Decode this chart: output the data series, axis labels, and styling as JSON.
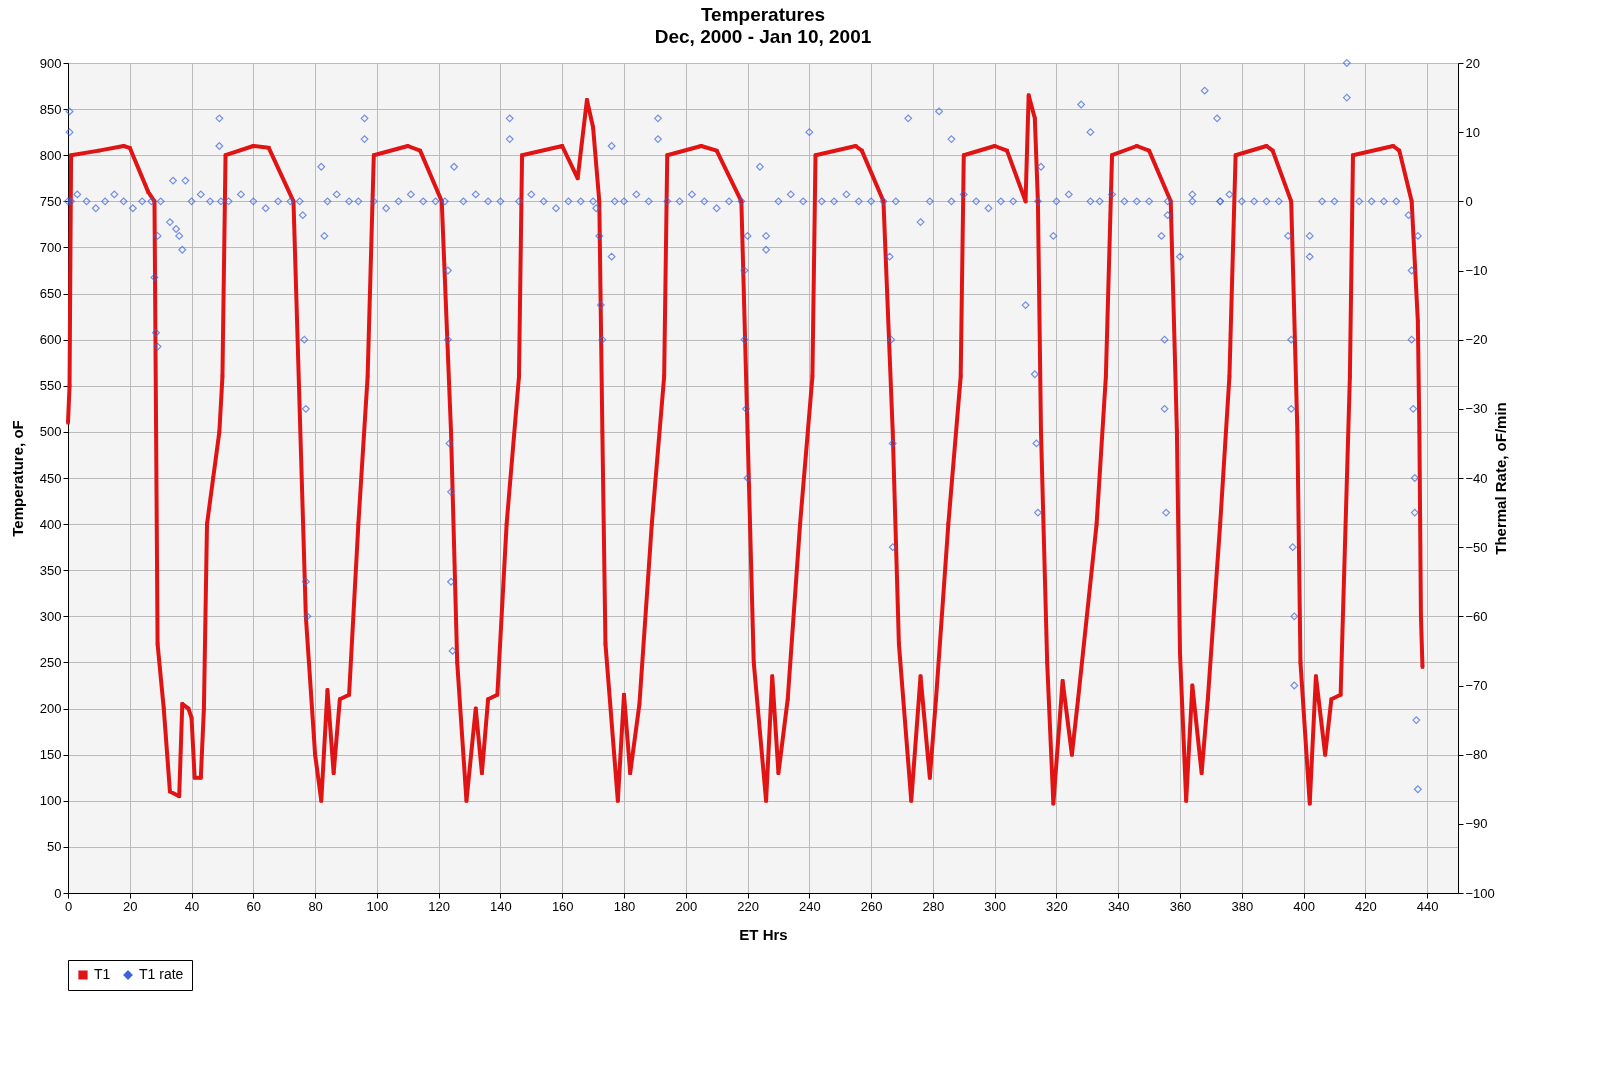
{
  "chart_data": {
    "type": "line",
    "title": "Temperatures",
    "subtitle": "Dec, 2000 - Jan 10, 2001",
    "xlabel": "ET Hrs",
    "ylabel": "Temperature, oF",
    "y2label": "Thermal Rate, oF/min",
    "xlim": [
      0,
      450
    ],
    "xticks": [
      0,
      20,
      40,
      60,
      80,
      100,
      120,
      140,
      160,
      180,
      200,
      220,
      240,
      260,
      280,
      300,
      320,
      340,
      360,
      380,
      400,
      420,
      440
    ],
    "ylim": [
      0,
      900
    ],
    "yticks": [
      0,
      50,
      100,
      150,
      200,
      250,
      300,
      350,
      400,
      450,
      500,
      550,
      600,
      650,
      700,
      750,
      800,
      850,
      900
    ],
    "y2lim": [
      -100,
      20
    ],
    "y2ticks": [
      -100,
      -90,
      -80,
      -70,
      -60,
      -50,
      -40,
      -30,
      -20,
      -10,
      0,
      10,
      20
    ],
    "grid": true,
    "legend": "bottom",
    "series": [
      {
        "name": "T1",
        "type": "line",
        "marker": "square",
        "color": "#e01414",
        "x": [
          0,
          0.5,
          1,
          10,
          18,
          20,
          26,
          28,
          29,
          31,
          33,
          36,
          37,
          39,
          40,
          41,
          43,
          44,
          45,
          47,
          49,
          50,
          51,
          60,
          65,
          73,
          77,
          78,
          80,
          82,
          84,
          86,
          88,
          91,
          94,
          97,
          99,
          110,
          114,
          121,
          124,
          126,
          129,
          132,
          134,
          136,
          139,
          142,
          146,
          147,
          160,
          165,
          168,
          170,
          172,
          173,
          174,
          178,
          180,
          182,
          185,
          189,
          193,
          194,
          205,
          210,
          218,
          220,
          222,
          226,
          228,
          230,
          233,
          237,
          241,
          242,
          255,
          257,
          264,
          267,
          269,
          273,
          276,
          279,
          281,
          285,
          289,
          290,
          300,
          304,
          310,
          311,
          313,
          314,
          315,
          317,
          319,
          322,
          325,
          327,
          333,
          336,
          338,
          346,
          350,
          357,
          359,
          360,
          362,
          364,
          367,
          369,
          373,
          376,
          378,
          388,
          390,
          396,
          398,
          399,
          402,
          404,
          407,
          409,
          412,
          415,
          416,
          429,
          431,
          435,
          437,
          437.5,
          438,
          438.5
        ],
        "values": [
          510,
          550,
          800,
          805,
          810,
          808,
          760,
          750,
          270,
          200,
          110,
          105,
          205,
          200,
          190,
          125,
          125,
          200,
          400,
          450,
          500,
          560,
          800,
          810,
          808,
          750,
          300,
          250,
          150,
          100,
          220,
          130,
          210,
          215,
          400,
          560,
          800,
          810,
          805,
          750,
          500,
          250,
          100,
          200,
          130,
          210,
          215,
          400,
          560,
          800,
          810,
          775,
          860,
          830,
          750,
          500,
          270,
          100,
          215,
          130,
          205,
          400,
          560,
          800,
          810,
          805,
          750,
          500,
          250,
          100,
          235,
          130,
          210,
          400,
          560,
          800,
          810,
          805,
          750,
          500,
          270,
          100,
          235,
          125,
          210,
          400,
          560,
          800,
          810,
          805,
          750,
          865,
          840,
          750,
          500,
          250,
          97,
          230,
          150,
          210,
          400,
          560,
          800,
          810,
          805,
          750,
          500,
          260,
          100,
          225,
          130,
          210,
          400,
          560,
          800,
          810,
          805,
          750,
          500,
          250,
          97,
          235,
          150,
          210,
          215,
          560,
          800,
          810,
          805,
          750,
          620,
          500,
          300,
          245
        ]
      },
      {
        "name": "T1 rate",
        "type": "scatter",
        "axis": "y2",
        "marker": "diamond",
        "color": "#3c64dc",
        "x": [
          0,
          0.5,
          0.5,
          1,
          3,
          6,
          9,
          12,
          15,
          18,
          21,
          24,
          27,
          28,
          28.5,
          29,
          29,
          30,
          33,
          34,
          35,
          36,
          37,
          38,
          40,
          43,
          46,
          49,
          49,
          49.5,
          52,
          56,
          60,
          64,
          68,
          72,
          75,
          76,
          76.5,
          77,
          77,
          77.5,
          82,
          83,
          84,
          87,
          91,
          94,
          96,
          96,
          99,
          103,
          107,
          111,
          115,
          119,
          122,
          123,
          123,
          123.5,
          124,
          124,
          124.5,
          125,
          128,
          132,
          136,
          140,
          143,
          143,
          146,
          150,
          154,
          158,
          162,
          166,
          170,
          171,
          172,
          172.5,
          173,
          176,
          176,
          177,
          180,
          184,
          188,
          191,
          191,
          194,
          198,
          202,
          206,
          210,
          214,
          218,
          219,
          219,
          219.5,
          220,
          220,
          224,
          226,
          226,
          230,
          234,
          238,
          240,
          244,
          248,
          252,
          256,
          260,
          264,
          266,
          266.5,
          267,
          267,
          268,
          272,
          276,
          279,
          282,
          286,
          286,
          290,
          294,
          298,
          302,
          306,
          310,
          313,
          313.5,
          314,
          314,
          315,
          319,
          320,
          324,
          328,
          331,
          331,
          334,
          338,
          342,
          346,
          350,
          354,
          355,
          355,
          355.5,
          356,
          356,
          360,
          364,
          364,
          368,
          372,
          373,
          373,
          376,
          380,
          384,
          388,
          392,
          395,
          396,
          396,
          396.5,
          397,
          397,
          402,
          402,
          406,
          410,
          414,
          414,
          418,
          422,
          426,
          430,
          434,
          435,
          435,
          435.5,
          436,
          436,
          436.5,
          437,
          437
        ],
        "values": [
          0,
          13,
          10,
          0,
          1,
          0,
          -1,
          0,
          1,
          0,
          -1,
          0,
          0,
          -11,
          -19,
          -21,
          -5,
          0,
          -3,
          3,
          -4,
          -5,
          -7,
          3,
          0,
          1,
          0,
          12,
          8,
          0,
          0,
          1,
          0,
          -1,
          0,
          0,
          0,
          -2,
          -20,
          -30,
          -55,
          -60,
          5,
          -5,
          0,
          1,
          0,
          0,
          12,
          9,
          0,
          -1,
          0,
          1,
          0,
          0,
          0,
          -10,
          -20,
          -35,
          -42,
          -55,
          -65,
          5,
          0,
          1,
          0,
          0,
          12,
          9,
          0,
          1,
          0,
          -1,
          0,
          0,
          0,
          -1,
          -5,
          -15,
          -20,
          8,
          -8,
          0,
          0,
          1,
          0,
          12,
          9,
          0,
          0,
          1,
          0,
          -1,
          0,
          0,
          -10,
          -20,
          -30,
          -40,
          -5,
          5,
          -5,
          -7,
          0,
          1,
          0,
          10,
          0,
          0,
          1,
          0,
          0,
          0,
          -8,
          -20,
          -35,
          -50,
          0,
          12,
          -3,
          0,
          13,
          9,
          0,
          1,
          0,
          -1,
          0,
          0,
          -15,
          -25,
          -35,
          -45,
          0,
          5,
          -5,
          0,
          1,
          14,
          10,
          0,
          0,
          1,
          0,
          0,
          0,
          -5,
          -20,
          -30,
          -45,
          -2,
          0,
          -8,
          0,
          1,
          16,
          12,
          0,
          0,
          1,
          0,
          0,
          0,
          0,
          -5,
          -20,
          -30,
          -50,
          -70,
          -60,
          -5,
          -8,
          0,
          0,
          20,
          15,
          0,
          0,
          0,
          0,
          -2,
          -10,
          -20,
          -30,
          -40,
          -45,
          -75,
          -85,
          -5
        ]
      }
    ]
  }
}
